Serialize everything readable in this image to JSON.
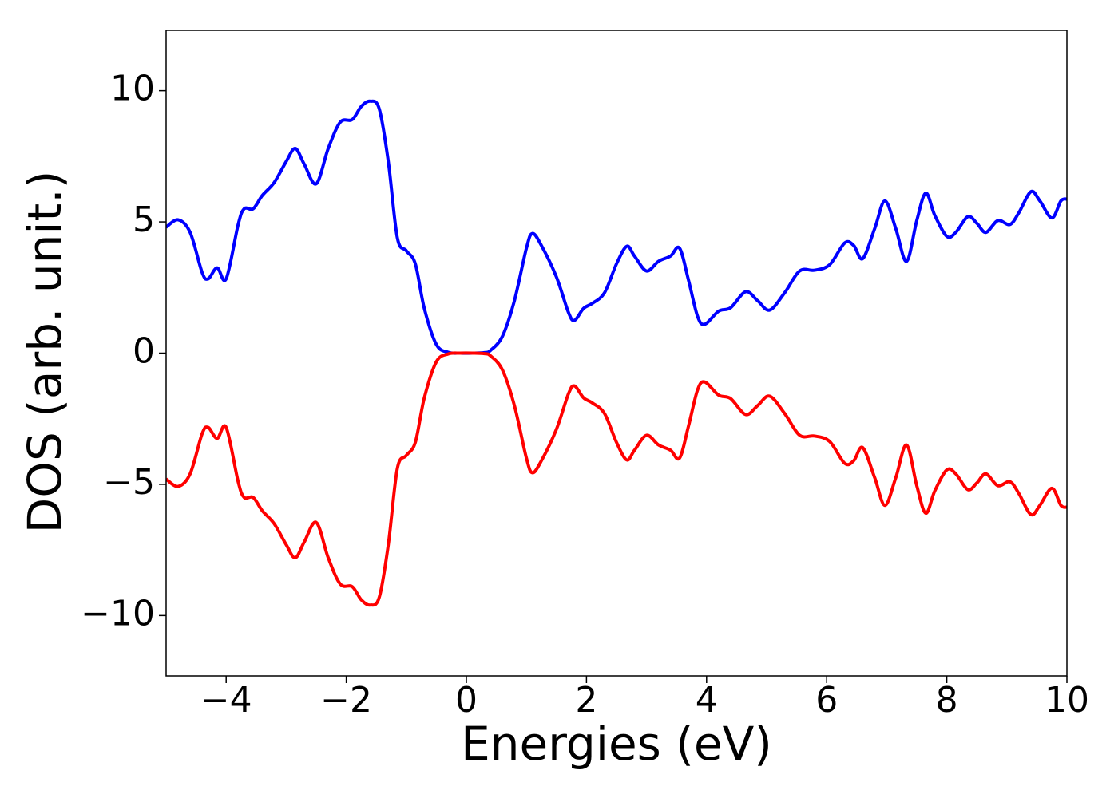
{
  "chart_data": {
    "type": "line",
    "xlabel": "Energies (eV)",
    "ylabel": "DOS (arb. unit.)",
    "xlim": [
      -5,
      10
    ],
    "ylim": [
      -12.3,
      12.3
    ],
    "xticks": [
      {
        "value": -4,
        "label": "−4"
      },
      {
        "value": -2,
        "label": "−2"
      },
      0,
      2,
      4,
      6,
      8,
      10
    ],
    "yticks": [
      {
        "value": -10,
        "label": "−10"
      },
      {
        "value": -5,
        "label": "−5"
      },
      0,
      5,
      10
    ],
    "x": [
      -5,
      -4.8,
      -4.6,
      -4.4,
      -4.3,
      -4.15,
      -4.0,
      -3.8,
      -3.7,
      -3.55,
      -3.4,
      -3.2,
      -3.0,
      -2.85,
      -2.7,
      -2.5,
      -2.3,
      -2.1,
      -1.9,
      -1.75,
      -1.6,
      -1.45,
      -1.3,
      -1.15,
      -1.0,
      -0.85,
      -0.7,
      -0.5,
      -0.3,
      -0.1,
      0.1,
      0.3,
      0.4,
      0.6,
      0.8,
      1.0,
      1.1,
      1.25,
      1.5,
      1.7,
      1.8,
      1.95,
      2.1,
      2.3,
      2.5,
      2.67,
      2.8,
      3.0,
      3.2,
      3.4,
      3.55,
      3.7,
      3.85,
      3.97,
      4.2,
      4.4,
      4.65,
      4.85,
      5.05,
      5.3,
      5.55,
      5.8,
      6.05,
      6.3,
      6.45,
      6.6,
      6.8,
      6.97,
      7.15,
      7.33,
      7.5,
      7.65,
      7.8,
      8.0,
      8.15,
      8.35,
      8.5,
      8.65,
      8.85,
      9.05,
      9.2,
      9.4,
      9.55,
      9.75,
      9.9,
      10
    ],
    "series": [
      {
        "color": "#0000ff",
        "values": [
          4.8,
          5.08,
          4.6,
          3.07,
          2.83,
          3.25,
          2.83,
          4.9,
          5.5,
          5.5,
          6.0,
          6.5,
          7.3,
          7.8,
          7.2,
          6.45,
          7.8,
          8.8,
          8.9,
          9.4,
          9.6,
          9.3,
          7.3,
          4.4,
          3.9,
          3.4,
          1.7,
          0.33,
          0.03,
          0,
          0,
          0.02,
          0.1,
          0.64,
          2.0,
          4.0,
          4.56,
          4.1,
          2.9,
          1.55,
          1.25,
          1.7,
          1.9,
          2.3,
          3.4,
          4.07,
          3.7,
          3.13,
          3.5,
          3.7,
          4.0,
          2.77,
          1.4,
          1.1,
          1.6,
          1.73,
          2.34,
          2.0,
          1.64,
          2.3,
          3.13,
          3.16,
          3.37,
          4.2,
          4.1,
          3.6,
          4.75,
          5.8,
          4.75,
          3.5,
          5.05,
          6.1,
          5.25,
          4.45,
          4.6,
          5.2,
          4.95,
          4.6,
          5.05,
          4.9,
          5.35,
          6.15,
          5.8,
          5.15,
          5.8,
          5.87
        ]
      },
      {
        "color": "#ff0000",
        "values": [
          -4.8,
          -5.08,
          -4.6,
          -3.07,
          -2.83,
          -3.25,
          -2.83,
          -4.9,
          -5.5,
          -5.5,
          -6.0,
          -6.5,
          -7.3,
          -7.8,
          -7.2,
          -6.45,
          -7.8,
          -8.8,
          -8.9,
          -9.4,
          -9.6,
          -9.3,
          -7.3,
          -4.4,
          -3.9,
          -3.4,
          -1.7,
          -0.33,
          -0.03,
          0,
          0,
          -0.02,
          -0.1,
          -0.64,
          -2.0,
          -4.0,
          -4.56,
          -4.1,
          -2.9,
          -1.55,
          -1.25,
          -1.7,
          -1.9,
          -2.3,
          -3.4,
          -4.07,
          -3.7,
          -3.13,
          -3.5,
          -3.7,
          -4.0,
          -2.77,
          -1.4,
          -1.1,
          -1.6,
          -1.73,
          -2.34,
          -2.0,
          -1.64,
          -2.3,
          -3.13,
          -3.16,
          -3.37,
          -4.2,
          -4.1,
          -3.6,
          -4.75,
          -5.8,
          -4.75,
          -3.5,
          -5.05,
          -6.1,
          -5.25,
          -4.45,
          -4.6,
          -5.2,
          -4.95,
          -4.6,
          -5.05,
          -4.9,
          -5.35,
          -6.15,
          -5.8,
          -5.15,
          -5.8,
          -5.87
        ]
      }
    ]
  }
}
